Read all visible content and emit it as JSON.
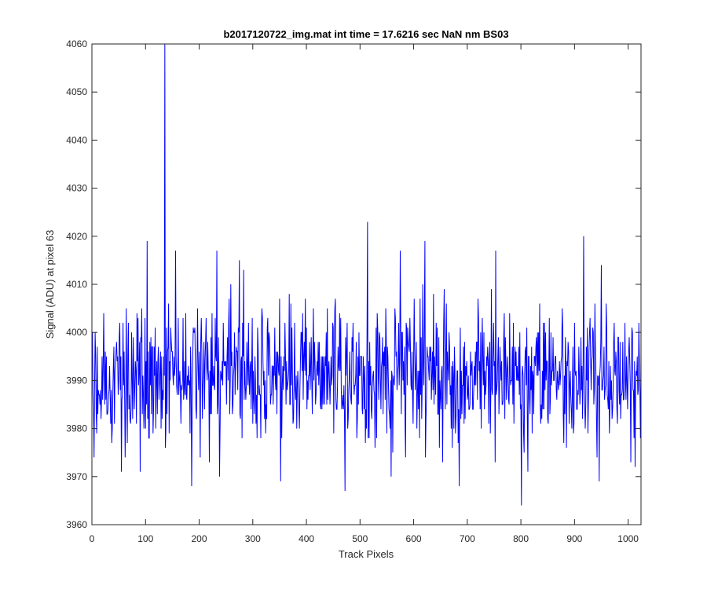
{
  "chart_data": {
    "type": "line",
    "title": "b2017120722_img.mat int time = 17.6216 sec  NaN nm BS03",
    "xlabel": "Track Pixels",
    "ylabel": "Signal (ADU) at pixel 63",
    "xlim": [
      0,
      1024
    ],
    "ylim": [
      3960,
      4060
    ],
    "xticks": [
      0,
      100,
      200,
      300,
      400,
      500,
      600,
      700,
      800,
      900,
      1000
    ],
    "yticks": [
      3960,
      3970,
      3980,
      3990,
      4000,
      4010,
      4020,
      4030,
      4040,
      4050,
      4060
    ],
    "grid": false,
    "legend": "none",
    "series": [
      {
        "color": "#0000ff",
        "line_width": 1,
        "x_start": 1,
        "x_step": 1,
        "n_points": 1024,
        "mean": 3991,
        "spread": 7,
        "min": 3964,
        "max": 4060,
        "seed": 20171207,
        "features": [
          {
            "x": 4,
            "y": 3974
          },
          {
            "x": 55,
            "y": 3971
          },
          {
            "x": 90,
            "y": 3971
          },
          {
            "x": 103,
            "y": 4019
          },
          {
            "x": 136,
            "y": 4060
          },
          {
            "x": 137,
            "y": 3976
          },
          {
            "x": 156,
            "y": 4017
          },
          {
            "x": 175,
            "y": 4004
          },
          {
            "x": 186,
            "y": 3968
          },
          {
            "x": 233,
            "y": 4017
          },
          {
            "x": 238,
            "y": 3970
          },
          {
            "x": 472,
            "y": 3967
          },
          {
            "x": 514,
            "y": 4023
          },
          {
            "x": 575,
            "y": 4017
          },
          {
            "x": 621,
            "y": 4019
          },
          {
            "x": 685,
            "y": 3968
          },
          {
            "x": 753,
            "y": 4017
          },
          {
            "x": 801,
            "y": 3964
          },
          {
            "x": 813,
            "y": 3971
          },
          {
            "x": 917,
            "y": 4020
          },
          {
            "x": 950,
            "y": 4014
          },
          {
            "x": 1005,
            "y": 3973
          }
        ]
      }
    ]
  }
}
